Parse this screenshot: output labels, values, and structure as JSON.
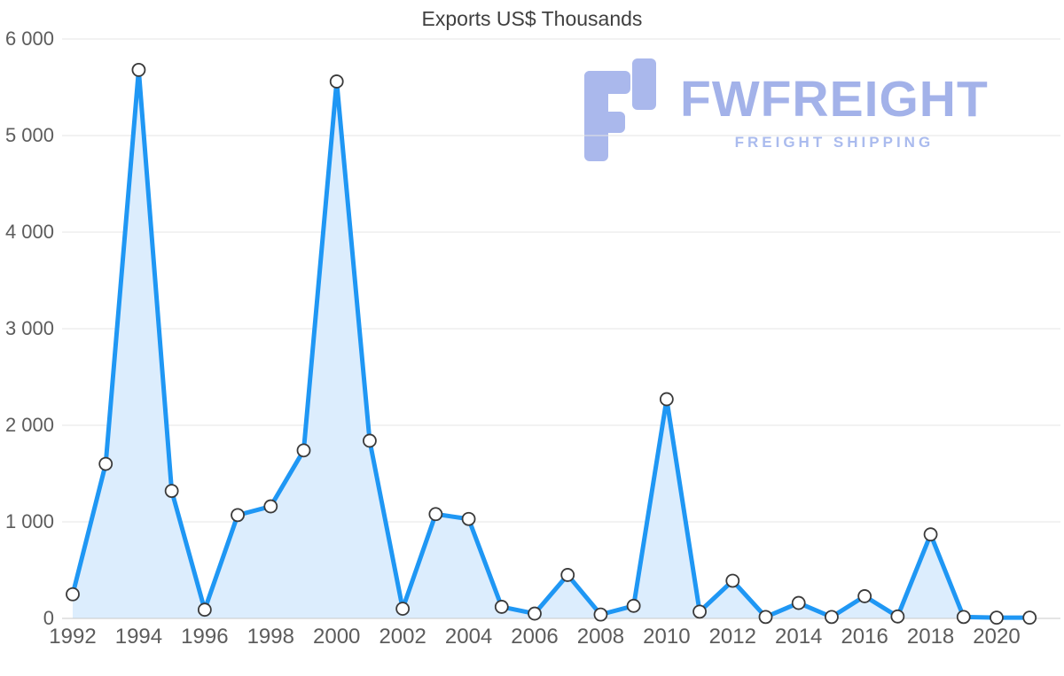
{
  "chart_data": {
    "type": "area",
    "title": "Exports US$ Thousands",
    "x": [
      1992,
      1993,
      1994,
      1995,
      1996,
      1997,
      1998,
      1999,
      2000,
      2001,
      2002,
      2003,
      2004,
      2005,
      2006,
      2007,
      2008,
      2009,
      2010,
      2011,
      2012,
      2013,
      2014,
      2015,
      2016,
      2017,
      2018,
      2019,
      2020,
      2021
    ],
    "series": [
      {
        "name": "Exports",
        "values": [
          250,
          1600,
          5680,
          1320,
          90,
          1070,
          1160,
          1740,
          5560,
          1840,
          100,
          1080,
          1030,
          120,
          50,
          450,
          40,
          130,
          2270,
          70,
          390,
          15,
          160,
          15,
          230,
          20,
          870,
          15,
          8,
          8
        ]
      }
    ],
    "ylim": [
      0,
      6000
    ],
    "yticks": {
      "values": [
        0,
        1000,
        2000,
        3000,
        4000,
        5000,
        6000
      ],
      "labels": [
        "0",
        "1 000",
        "2 000",
        "3 000",
        "4 000",
        "5 000",
        "6 000"
      ]
    },
    "xticks": {
      "values": [
        1992,
        1994,
        1996,
        1998,
        2000,
        2002,
        2004,
        2006,
        2008,
        2010,
        2012,
        2014,
        2016,
        2018,
        2020
      ],
      "labels": [
        "1992",
        "1994",
        "1996",
        "1998",
        "2000",
        "2002",
        "2004",
        "2006",
        "2008",
        "2010",
        "2012",
        "2014",
        "2016",
        "2018",
        "2020"
      ]
    },
    "grid": true,
    "legend": "none",
    "colors": {
      "line": "#1f97f4",
      "fill": "#dcedfd",
      "grid": "#e4e4e4",
      "axis_line": "#c9c9c9",
      "axis_text": "#5c5c5c",
      "marker_fill": "#ffffff",
      "marker_stroke": "#3a3a3a"
    }
  },
  "watermark": {
    "brand": "FWFREIGHT",
    "tagline": "FREIGHT SHIPPING",
    "brand_color": "#a3b2e9",
    "tagline_color": "#aabbee",
    "icon_color": "#aab8ec",
    "icon": "fwfreight-f-logo"
  }
}
